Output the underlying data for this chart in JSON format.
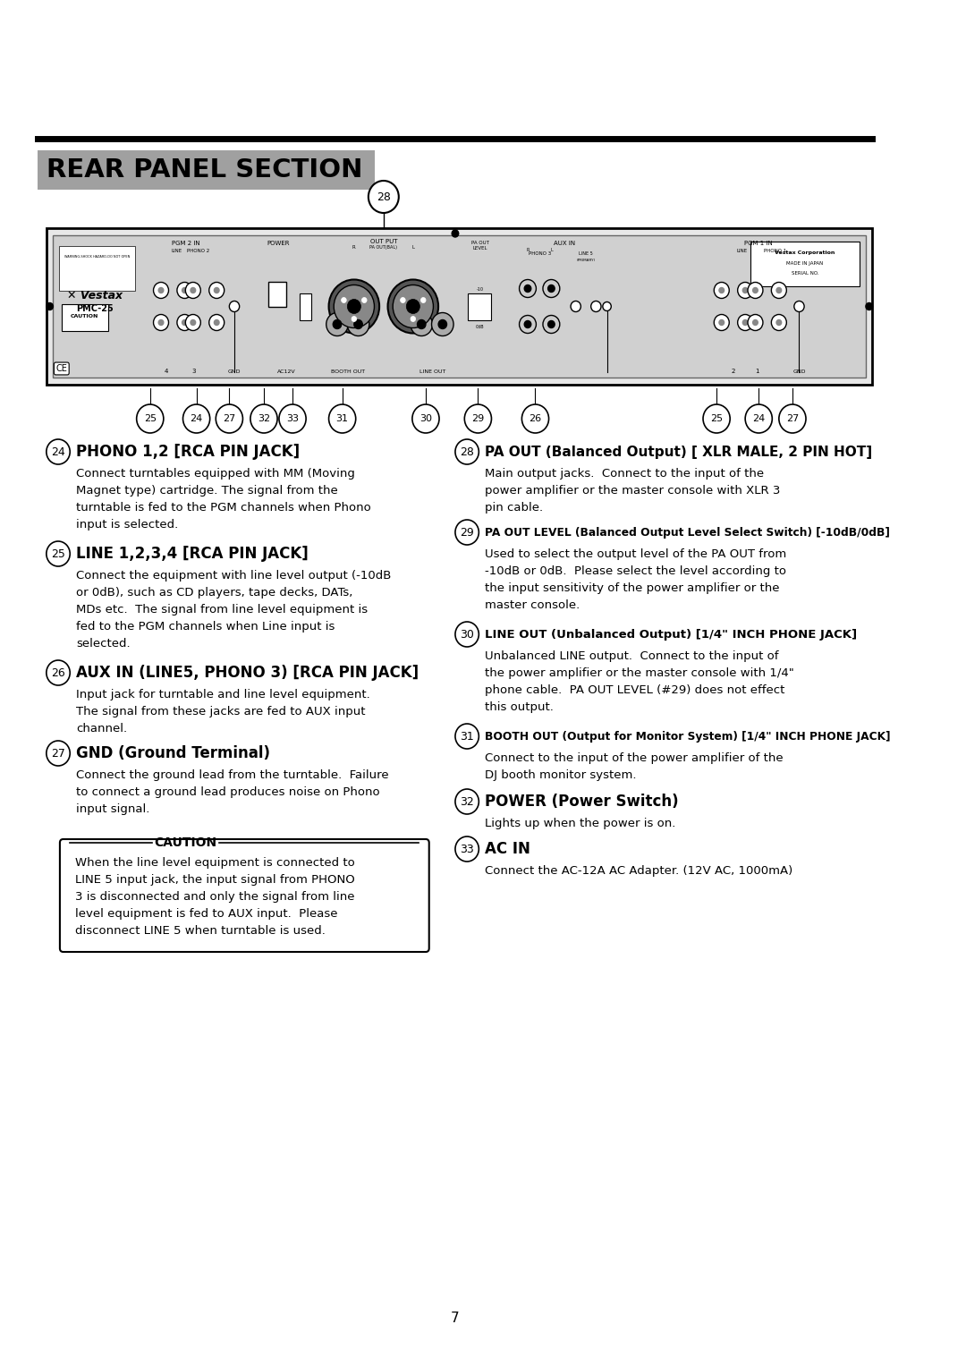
{
  "title": "REAR PANEL SECTION",
  "title_bg": "#a0a0a0",
  "page_number": "7",
  "bg_color": "#ffffff",
  "text_color": "#000000",
  "items_left": [
    {
      "num": "24",
      "heading": "PHONO 1,2 [RCA PIN JACK]",
      "body": "Connect turntables equipped with MM (Moving\nMagnet type) cartridge. The signal from the\nturntable is fed to the PGM channels when Phono\ninput is selected."
    },
    {
      "num": "25",
      "heading": "LINE 1,2,3,4 [RCA PIN JACK]",
      "body": "Connect the equipment with line level output (-10dB\nor 0dB), such as CD players, tape decks, DATs,\nMDs etc.  The signal from line level equipment is\nfed to the PGM channels when Line input is\nselected."
    },
    {
      "num": "26",
      "heading": "AUX IN (LINE5, PHONO 3) [RCA PIN JACK]",
      "body": "Input jack for turntable and line level equipment.\nThe signal from these jacks are fed to AUX input\nchannel."
    },
    {
      "num": "27",
      "heading": "GND (Ground Terminal)",
      "body": "Connect the ground lead from the turntable.  Failure\nto connect a ground lead produces noise on Phono\ninput signal."
    }
  ],
  "items_right": [
    {
      "num": "28",
      "heading": "PA OUT (Balanced Output) [ XLR MALE, 2 PIN HOT]",
      "body": "Main output jacks.  Connect to the input of the\npower amplifier or the master console with XLR 3\npin cable."
    },
    {
      "num": "29",
      "heading": "PA OUT LEVEL (Balanced Output Level Select Switch) [-10dB/0dB]",
      "body": "Used to select the output level of the PA OUT from\n-10dB or 0dB.  Please select the level according to\nthe input sensitivity of the power amplifier or the\nmaster console."
    },
    {
      "num": "30",
      "heading": "LINE OUT (Unbalanced Output) [1/4\" INCH PHONE JACK]",
      "body": "Unbalanced LINE output.  Connect to the input of\nthe power amplifier or the master console with 1/4\"\nphone cable.  PA OUT LEVEL (#29) does not effect\nthis output."
    },
    {
      "num": "31",
      "heading": "BOOTH OUT (Output for Monitor System) [1/4\" INCH PHONE JACK]",
      "body": "Connect to the input of the power amplifier of the\nDJ booth monitor system."
    },
    {
      "num": "32",
      "heading": "POWER (Power Switch)",
      "body": "Lights up when the power is on."
    },
    {
      "num": "33",
      "heading": "AC IN",
      "body": "Connect the AC-12A AC Adapter. (12V AC, 1000mA)"
    }
  ],
  "caution_title": "CAUTION",
  "caution_body": "When the line level equipment is connected to\nLINE 5 input jack, the input signal from PHONO\n3 is disconnected and only the signal from line\nlevel equipment is fed to AUX input.  Please\ndisconnect LINE 5 when turntable is used."
}
